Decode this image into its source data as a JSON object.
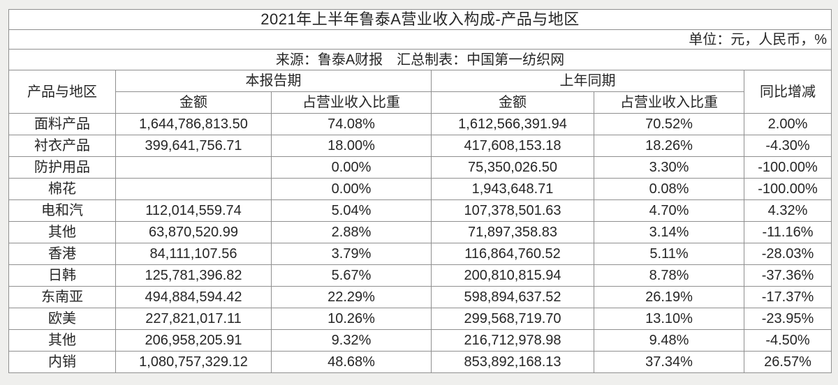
{
  "chart_data": {
    "type": "table",
    "title": "2021年上半年鲁泰A营业收入构成-产品与地区",
    "unit_note": "单位：元，人民币，%",
    "source_note": "来源：鲁泰A财报　汇总制表：中国第一纺织网",
    "header": {
      "product_region": "产品与地区",
      "current_period": "本报告期",
      "prior_period": "上年同期",
      "amount": "金额",
      "share": "占营业收入比重",
      "yoy": "同比增减"
    },
    "columns": [
      "产品与地区",
      "本报告期-金额",
      "本报告期-占营业收入比重",
      "上年同期-金额",
      "上年同期-占营业收入比重",
      "同比增减"
    ],
    "rows": [
      {
        "label": "面料产品",
        "current_amount": "1,644,786,813.50",
        "current_share": "74.08%",
        "prior_amount": "1,612,566,391.94",
        "prior_share": "70.52%",
        "yoy": "2.00%"
      },
      {
        "label": "衬衣产品",
        "current_amount": "399,641,756.71",
        "current_share": "18.00%",
        "prior_amount": "417,608,153.18",
        "prior_share": "18.26%",
        "yoy": "-4.30%"
      },
      {
        "label": "防护用品",
        "current_amount": "",
        "current_share": "0.00%",
        "prior_amount": "75,350,026.50",
        "prior_share": "3.30%",
        "yoy": "-100.00%"
      },
      {
        "label": "棉花",
        "current_amount": "",
        "current_share": "0.00%",
        "prior_amount": "1,943,648.71",
        "prior_share": "0.08%",
        "yoy": "-100.00%"
      },
      {
        "label": "电和汽",
        "current_amount": "112,014,559.74",
        "current_share": "5.04%",
        "prior_amount": "107,378,501.63",
        "prior_share": "4.70%",
        "yoy": "4.32%"
      },
      {
        "label": "其他",
        "current_amount": "63,870,520.99",
        "current_share": "2.88%",
        "prior_amount": "71,897,358.83",
        "prior_share": "3.14%",
        "yoy": "-11.16%"
      },
      {
        "label": "香港",
        "current_amount": "84,111,107.56",
        "current_share": "3.79%",
        "prior_amount": "116,864,760.52",
        "prior_share": "5.11%",
        "yoy": "-28.03%"
      },
      {
        "label": "日韩",
        "current_amount": "125,781,396.82",
        "current_share": "5.67%",
        "prior_amount": "200,810,815.94",
        "prior_share": "8.78%",
        "yoy": "-37.36%"
      },
      {
        "label": "东南亚",
        "current_amount": "494,884,594.42",
        "current_share": "22.29%",
        "prior_amount": "598,894,637.52",
        "prior_share": "26.19%",
        "yoy": "-17.37%"
      },
      {
        "label": "欧美",
        "current_amount": "227,821,017.11",
        "current_share": "10.26%",
        "prior_amount": "299,568,719.70",
        "prior_share": "13.10%",
        "yoy": "-23.95%"
      },
      {
        "label": "其他",
        "current_amount": "206,958,205.91",
        "current_share": "9.32%",
        "prior_amount": "216,712,978.98",
        "prior_share": "9.48%",
        "yoy": "-4.50%"
      },
      {
        "label": "内销",
        "current_amount": "1,080,757,329.12",
        "current_share": "48.68%",
        "prior_amount": "853,892,168.13",
        "prior_share": "37.34%",
        "yoy": "26.57%"
      }
    ]
  },
  "colors": {
    "page_background": "#efefed",
    "cell_background": "#ffffff",
    "border": "#8f8f8f",
    "text": "#262626"
  }
}
